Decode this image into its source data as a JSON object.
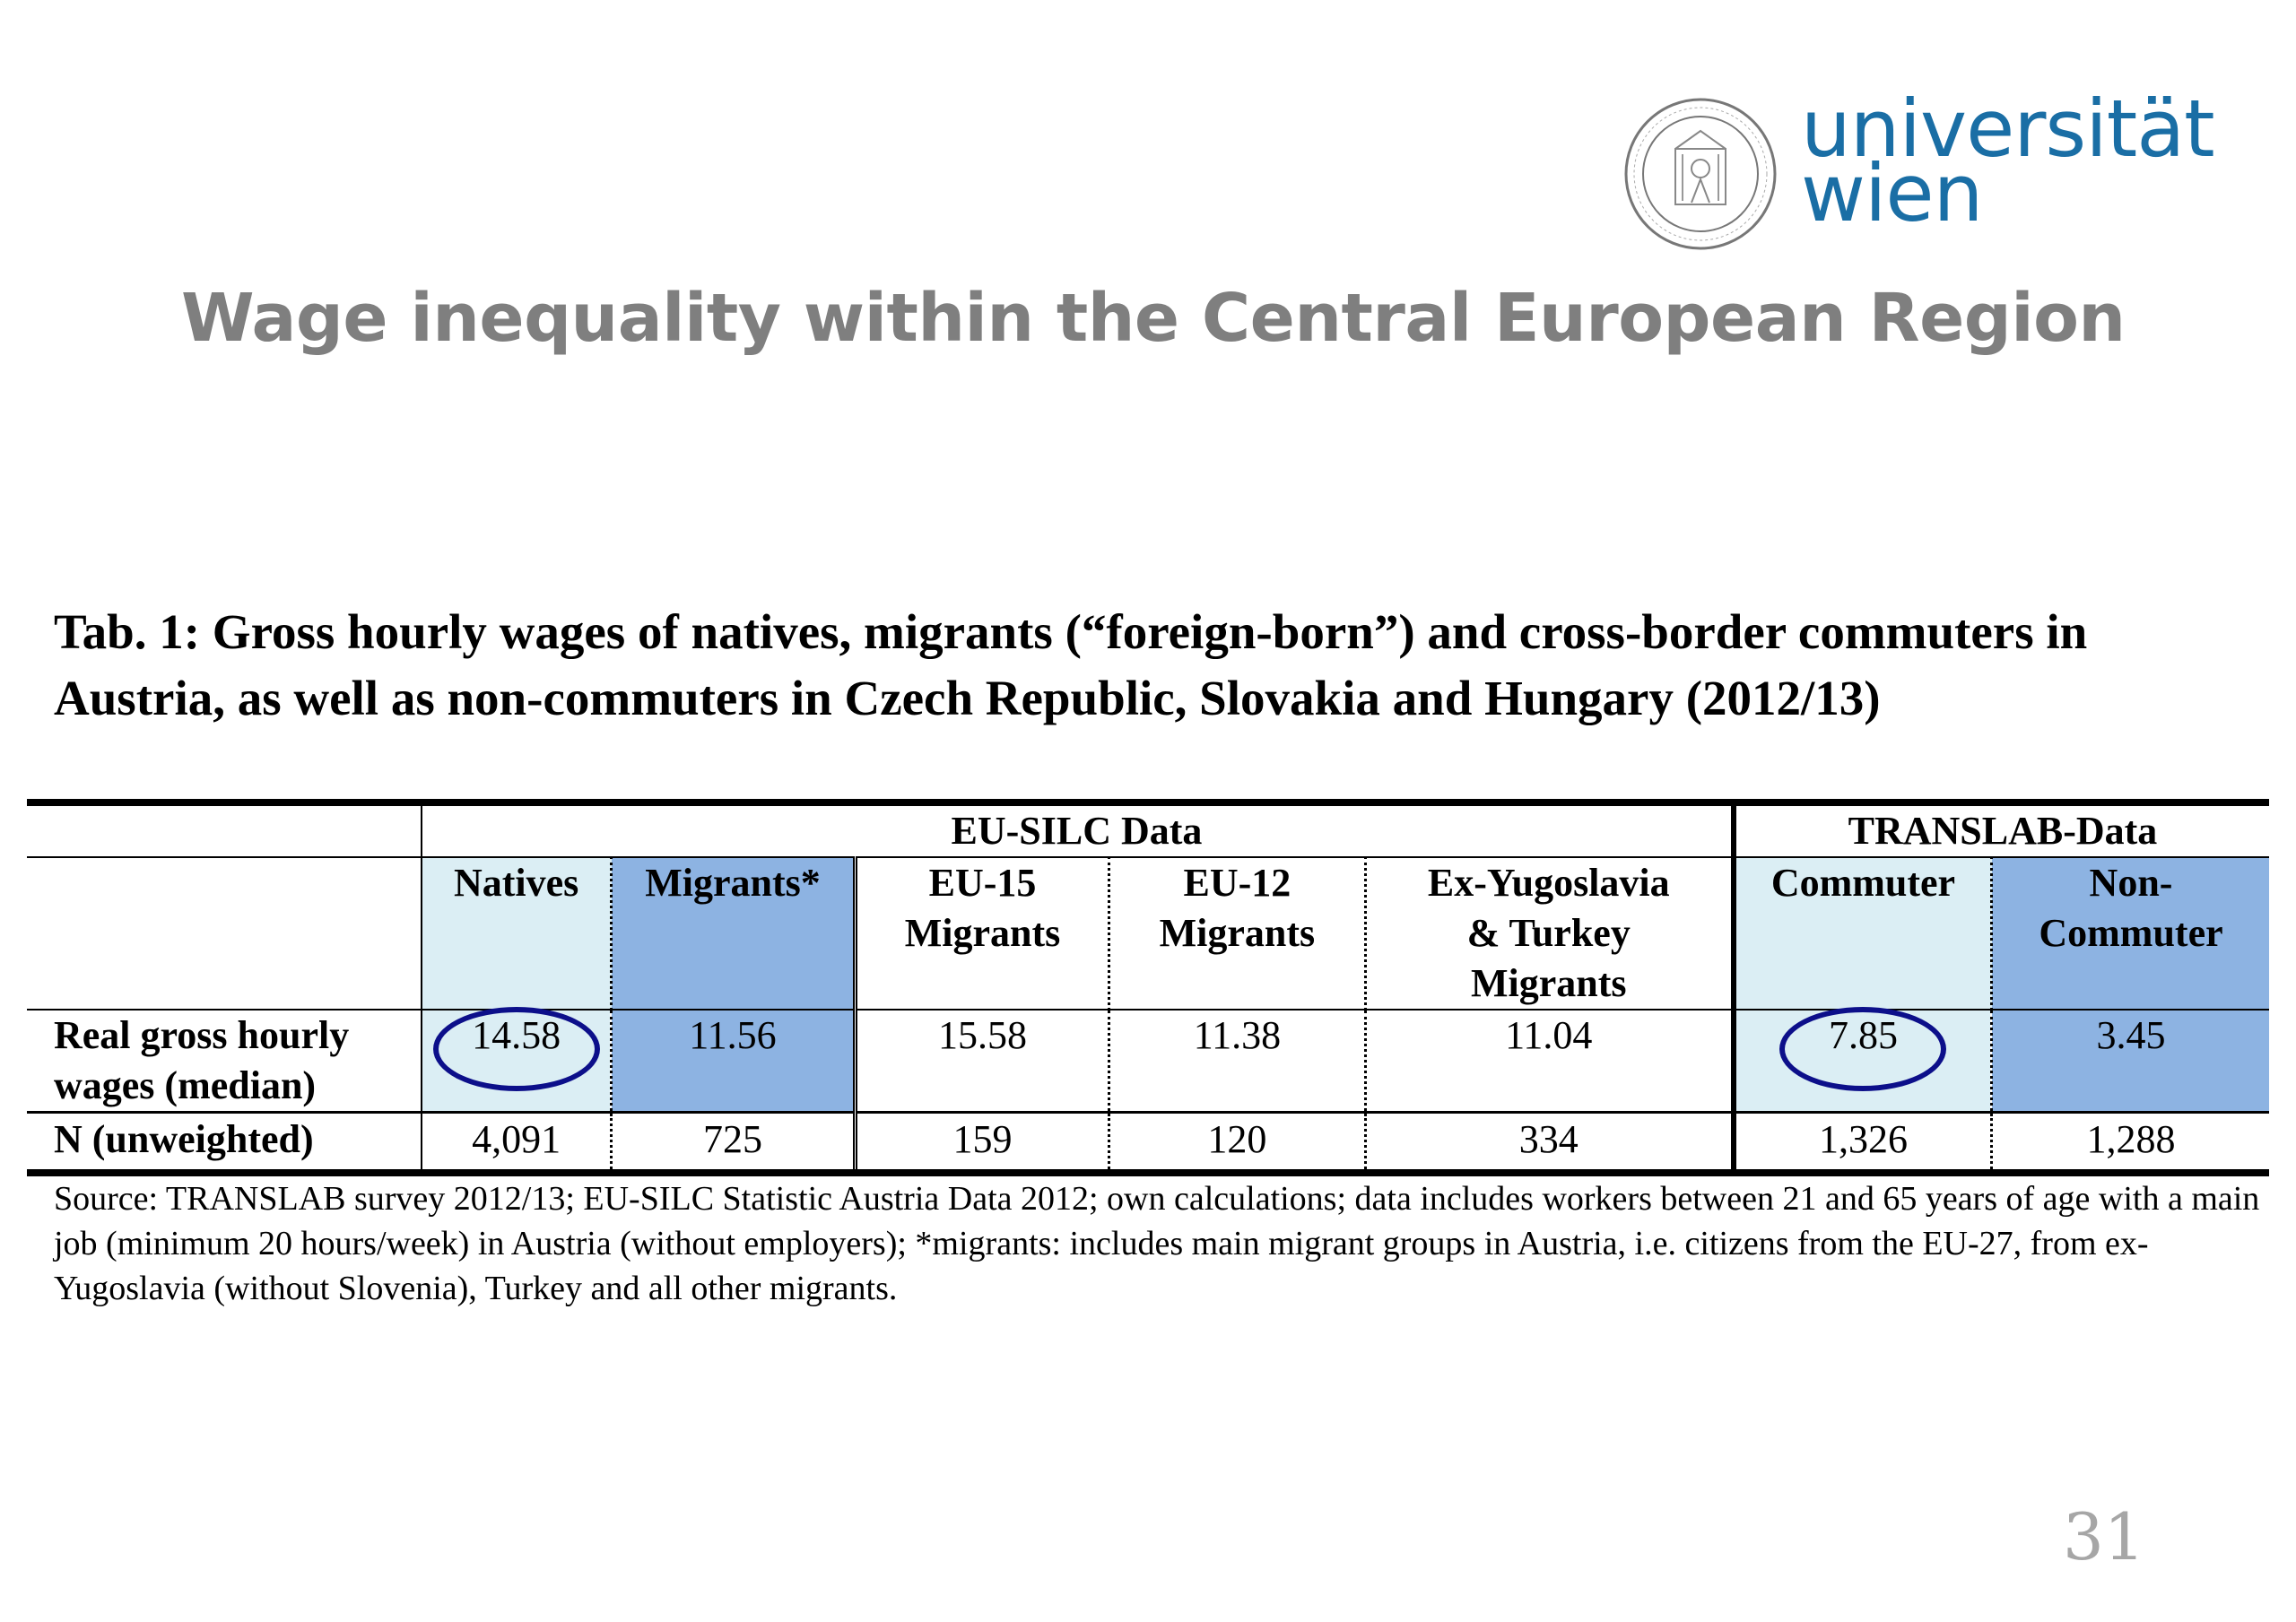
{
  "logo": {
    "line1": "universität",
    "line2": "wien",
    "seal_text": "SIGILLVM UNIVERSITATIS VIENNENSIS",
    "color": "#1a6ea5"
  },
  "slide_title": "Wage inequality within the Central European Region",
  "table_title": "Tab. 1: Gross hourly wages of natives, migrants (“foreign-born”) and cross-border commuters in Austria, as well as non-commuters in Czech Republic, Slovakia and Hungary (2012/13)",
  "table": {
    "groups": {
      "eusilc": "EU-SILC Data",
      "translab": "TRANSLAB-Data"
    },
    "headers": {
      "natives": "Natives",
      "migrants": "Migrants*",
      "eu15_a": "EU-15",
      "eu15_b": "Migrants",
      "eu12_a": "EU-12",
      "eu12_b": "Migrants",
      "exyu_a": "Ex-Yugoslavia",
      "exyu_b": "& Turkey",
      "exyu_c": "Migrants",
      "commuter": "Commuter",
      "noncomm_a": "Non-",
      "noncomm_b": "Commuter"
    },
    "rows": {
      "wages": {
        "label_a": "Real gross hourly",
        "label_b": "wages (median)",
        "values": [
          "14.58",
          "11.56",
          "15.58",
          "11.38",
          "11.04",
          "7.85",
          "3.45"
        ]
      },
      "n": {
        "label": "N (unweighted)",
        "values": [
          "4,091",
          "725",
          "159",
          "120",
          "334",
          "1,326",
          "1,288"
        ]
      }
    },
    "colors": {
      "light": "#dbeef4",
      "medium": "#8db3e2",
      "circle": "#0c0f8a"
    }
  },
  "source": "Source: TRANSLAB survey 2012/13; EU-SILC Statistic Austria Data 2012; own calculations; data includes workers between 21 and 65 years of age with a main job (minimum 20 hours/week) in Austria (without employers); *migrants: includes main migrant groups in Austria, i.e. citizens from the EU-27, from ex-Yugoslavia (without Slovenia), Turkey and all other migrants.",
  "page_number": "31"
}
